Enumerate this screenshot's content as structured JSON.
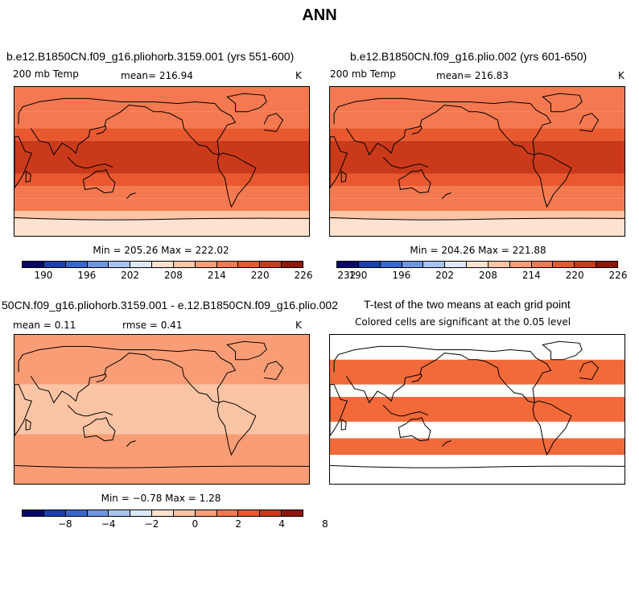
{
  "title": "ANN",
  "panels": [
    {
      "title": "b.e12.B1850CN.f09_g16.pliohorb.3159.001 (yrs 551-600)",
      "variable": "200 mb Temp",
      "stat": "mean= 216.94",
      "units": "K",
      "minmax": "Min = 205.26 Max = 222.02"
    },
    {
      "title": "b.e12.B1850CN.f09_g16.plio.002 (yrs 601-650)",
      "variable": "200 mb Temp",
      "stat": "mean= 216.83",
      "units": "K",
      "minmax": "Min = 204.26 Max = 221.88"
    },
    {
      "title": "50CN.f09_g16.pliohorb.3159.001 - e.12.B1850CN.f09_g16.plio.002",
      "stat_mean": "mean =    0.11",
      "stat_rmse": "rmse =    0.41",
      "units": "K",
      "minmax": "Min =  −0.78 Max =    1.28"
    },
    {
      "title": "T-test of the two means at each grid point",
      "subtitle": "Colored cells are significant at the 0.05 level"
    }
  ],
  "colors": {
    "palette": [
      "#08086b",
      "#1c3fb0",
      "#3a66cf",
      "#6f94e2",
      "#a9c3f0",
      "#dbe8fb",
      "#fde2d0",
      "#fbc5a5",
      "#f99d76",
      "#f47950",
      "#e9582f",
      "#ca3a1a",
      "#8f1608"
    ],
    "land": "#000000",
    "significant": "#f26a3a"
  },
  "chart_data": [
    {
      "type": "heatmap",
      "title": "b.e12.B1850CN.f09_g16.pliohorb.3159.001 (yrs 551-600)",
      "variable": "200 mb Temp",
      "units": "K",
      "mean": 216.94,
      "min": 205.26,
      "max": 222.02,
      "colorbar_levels": [
        190,
        193,
        196,
        199,
        202,
        205,
        208,
        211,
        214,
        217,
        220,
        223,
        226,
        229,
        232
      ],
      "colorbar_labels": [
        "190",
        "196",
        "202",
        "208",
        "214",
        "220",
        "226",
        "232"
      ],
      "zonal_bands": [
        {
          "lat_from": 90,
          "lat_to": 60,
          "value": 214.5
        },
        {
          "lat_from": 60,
          "lat_to": 40,
          "value": 216.5
        },
        {
          "lat_from": 40,
          "lat_to": 25,
          "value": 219
        },
        {
          "lat_from": 25,
          "lat_to": -15,
          "value": 221
        },
        {
          "lat_from": -15,
          "lat_to": -30,
          "value": 219
        },
        {
          "lat_from": -30,
          "lat_to": -45,
          "value": 217
        },
        {
          "lat_from": -45,
          "lat_to": -60,
          "value": 214.5
        },
        {
          "lat_from": -60,
          "lat_to": -70,
          "value": 211
        },
        {
          "lat_from": -70,
          "lat_to": -90,
          "value": 208
        }
      ]
    },
    {
      "type": "heatmap",
      "title": "b.e12.B1850CN.f09_g16.plio.002 (yrs 601-650)",
      "variable": "200 mb Temp",
      "units": "K",
      "mean": 216.83,
      "min": 204.26,
      "max": 221.88,
      "colorbar_levels": [
        190,
        193,
        196,
        199,
        202,
        205,
        208,
        211,
        214,
        217,
        220,
        223,
        226,
        229,
        232
      ],
      "colorbar_labels": [
        "190",
        "196",
        "202",
        "208",
        "214",
        "220",
        "226",
        "232"
      ],
      "zonal_bands": [
        {
          "lat_from": 90,
          "lat_to": 60,
          "value": 214.5
        },
        {
          "lat_from": 60,
          "lat_to": 40,
          "value": 216.5
        },
        {
          "lat_from": 40,
          "lat_to": 25,
          "value": 219
        },
        {
          "lat_from": 25,
          "lat_to": -15,
          "value": 221
        },
        {
          "lat_from": -15,
          "lat_to": -30,
          "value": 219
        },
        {
          "lat_from": -30,
          "lat_to": -45,
          "value": 217
        },
        {
          "lat_from": -45,
          "lat_to": -60,
          "value": 214.5
        },
        {
          "lat_from": -60,
          "lat_to": -70,
          "value": 211
        },
        {
          "lat_from": -70,
          "lat_to": -90,
          "value": 207
        }
      ]
    },
    {
      "type": "heatmap",
      "title": "50CN.f09_g16.pliohorb.3159.001 - e.12.B1850CN.f09_g16.plio.002",
      "units": "K",
      "mean": 0.11,
      "rmse": 0.41,
      "min": -0.78,
      "max": 1.28,
      "colorbar_levels": [
        -10,
        -8,
        -6,
        -4,
        -3,
        -2,
        -1,
        0,
        1,
        2,
        3,
        4,
        6,
        8,
        10
      ],
      "colorbar_labels": [
        "-8",
        "-4",
        "-2",
        "0",
        "2",
        "4",
        "8"
      ],
      "zonal_bands": [
        {
          "lat_from": 90,
          "lat_to": 30,
          "value": 0.3
        },
        {
          "lat_from": 30,
          "lat_to": -30,
          "value": -0.3
        },
        {
          "lat_from": -30,
          "lat_to": -90,
          "value": 0.3
        }
      ]
    },
    {
      "type": "heatmap",
      "title": "T-test of the two means at each grid point",
      "subtitle": "Colored cells are significant at the 0.05 level",
      "significant_bands": [
        {
          "lat_from": 90,
          "lat_to": 60,
          "significant": false
        },
        {
          "lat_from": 60,
          "lat_to": 30,
          "significant": true
        },
        {
          "lat_from": 30,
          "lat_to": 15,
          "significant": false
        },
        {
          "lat_from": 15,
          "lat_to": -15,
          "significant": true
        },
        {
          "lat_from": -15,
          "lat_to": -35,
          "significant": false
        },
        {
          "lat_from": -35,
          "lat_to": -55,
          "significant": true
        },
        {
          "lat_from": -55,
          "lat_to": -90,
          "significant": false
        }
      ]
    }
  ]
}
